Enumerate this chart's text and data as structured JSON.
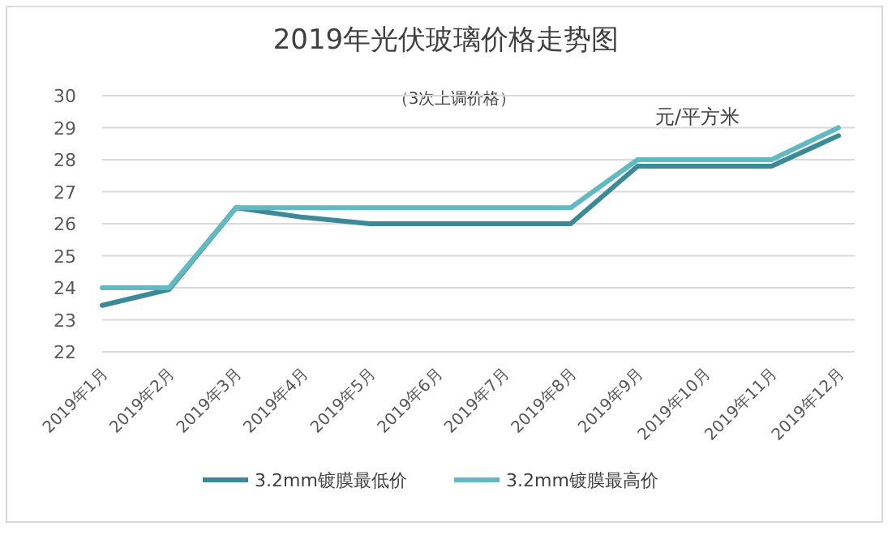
{
  "chart_data": {
    "type": "line",
    "title": "2019年光伏玻璃价格走势图",
    "subtitle": "（3次上调价格）",
    "annotations": [
      "元/平方米"
    ],
    "categories": [
      "2019年1月",
      "2019年2月",
      "2019年3月",
      "2019年4月",
      "2019年5月",
      "2019年6月",
      "2019年7月",
      "2019年8月",
      "2019年9月",
      "2019年10月",
      "2019年11月",
      "2019年12月"
    ],
    "ylim": [
      22,
      30
    ],
    "yticks": [
      22,
      23,
      24,
      25,
      26,
      27,
      28,
      29,
      30
    ],
    "grid": "y",
    "legend": "bottom",
    "marker": "none",
    "line_style": "solid",
    "series": [
      {
        "name": "3.2mm镀膜最低价",
        "color": "#3c8a98",
        "values": [
          23.45,
          23.95,
          26.5,
          26.2,
          26.0,
          26.0,
          26.0,
          26.0,
          27.8,
          27.8,
          27.8,
          28.75
        ]
      },
      {
        "name": "3.2mm镀膜最高价",
        "color": "#62b9c2",
        "values": [
          24,
          24,
          26.5,
          26.5,
          26.5,
          26.5,
          26.5,
          26.5,
          28.0,
          28.0,
          28.0,
          29.0
        ]
      }
    ]
  }
}
